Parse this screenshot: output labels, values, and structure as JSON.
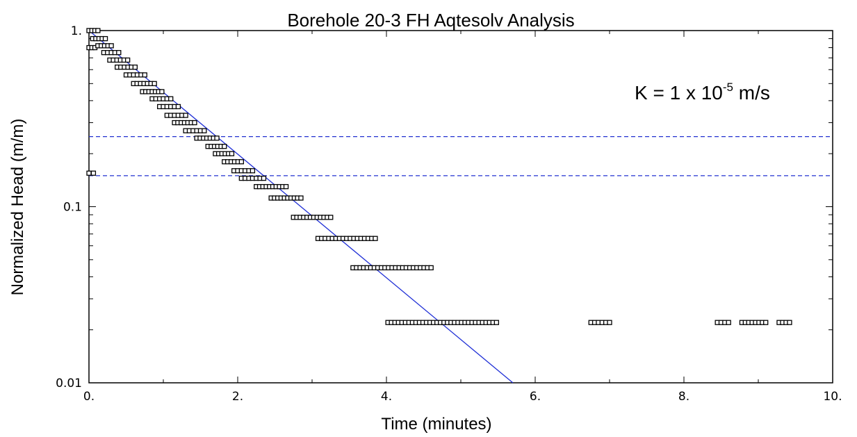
{
  "chart_data": {
    "type": "scatter",
    "title": "Borehole 20-3 FH Aqtesolv Analysis",
    "xlabel": "Time (minutes)",
    "ylabel": "Normalized Head (m/m)",
    "xlim": [
      0,
      10
    ],
    "ylim": [
      0.01,
      1
    ],
    "y_scale": "log",
    "x_ticks": [
      {
        "value": 0,
        "label": "0."
      },
      {
        "value": 2,
        "label": "2."
      },
      {
        "value": 4,
        "label": "4."
      },
      {
        "value": 6,
        "label": "6."
      },
      {
        "value": 8,
        "label": "8."
      },
      {
        "value": 10,
        "label": "10."
      }
    ],
    "y_ticks": [
      {
        "value": 1,
        "label": "1."
      },
      {
        "value": 0.1,
        "label": "0.1"
      },
      {
        "value": 0.01,
        "label": "0.01"
      }
    ],
    "annotation": {
      "text": "K = 1 x 10",
      "sup": "-5",
      "suffix": " m/s"
    },
    "series": [
      {
        "type": "scatter",
        "marker": "open-square",
        "color": "#000000",
        "segments": [
          {
            "y": 1.0,
            "x0": 0.0,
            "x1": 0.12
          },
          {
            "y": 0.8,
            "x0": 0.0,
            "x1": 0.08
          },
          {
            "y": 0.155,
            "x0": 0.0,
            "x1": 0.06
          },
          {
            "y": 0.9,
            "x0": 0.05,
            "x1": 0.22
          },
          {
            "y": 0.82,
            "x0": 0.12,
            "x1": 0.3
          },
          {
            "y": 0.75,
            "x0": 0.2,
            "x1": 0.4
          },
          {
            "y": 0.68,
            "x0": 0.28,
            "x1": 0.52
          },
          {
            "y": 0.62,
            "x0": 0.38,
            "x1": 0.62
          },
          {
            "y": 0.56,
            "x0": 0.5,
            "x1": 0.75
          },
          {
            "y": 0.5,
            "x0": 0.6,
            "x1": 0.88
          },
          {
            "y": 0.45,
            "x0": 0.72,
            "x1": 0.98
          },
          {
            "y": 0.41,
            "x0": 0.85,
            "x1": 1.1
          },
          {
            "y": 0.37,
            "x0": 0.95,
            "x1": 1.2
          },
          {
            "y": 0.33,
            "x0": 1.05,
            "x1": 1.3
          },
          {
            "y": 0.3,
            "x0": 1.15,
            "x1": 1.42
          },
          {
            "y": 0.27,
            "x0": 1.3,
            "x1": 1.55
          },
          {
            "y": 0.245,
            "x0": 1.45,
            "x1": 1.72
          },
          {
            "y": 0.22,
            "x0": 1.6,
            "x1": 1.82
          },
          {
            "y": 0.2,
            "x0": 1.7,
            "x1": 1.92
          },
          {
            "y": 0.18,
            "x0": 1.82,
            "x1": 2.05
          },
          {
            "y": 0.16,
            "x0": 1.95,
            "x1": 2.2
          },
          {
            "y": 0.145,
            "x0": 2.05,
            "x1": 2.35
          },
          {
            "y": 0.13,
            "x0": 2.25,
            "x1": 2.65
          },
          {
            "y": 0.112,
            "x0": 2.45,
            "x1": 2.85
          },
          {
            "y": 0.087,
            "x0": 2.75,
            "x1": 3.25
          },
          {
            "y": 0.066,
            "x0": 3.08,
            "x1": 3.85
          },
          {
            "y": 0.045,
            "x0": 3.55,
            "x1": 4.6
          },
          {
            "y": 0.022,
            "x0": 4.02,
            "x1": 5.48
          },
          {
            "y": 0.022,
            "x0": 6.75,
            "x1": 7.0
          },
          {
            "y": 0.022,
            "x0": 8.45,
            "x1": 8.6
          },
          {
            "y": 0.022,
            "x0": 8.78,
            "x1": 9.1
          },
          {
            "y": 0.022,
            "x0": 9.28,
            "x1": 9.42
          }
        ]
      },
      {
        "type": "line",
        "color": "#1f2fd6",
        "points": [
          [
            0,
            1.0
          ],
          [
            5.7,
            0.01
          ]
        ]
      },
      {
        "type": "hline",
        "style": "dashed",
        "color": "#2030d0",
        "y": 0.25
      },
      {
        "type": "hline",
        "style": "dashed",
        "color": "#2030d0",
        "y": 0.15
      }
    ]
  }
}
